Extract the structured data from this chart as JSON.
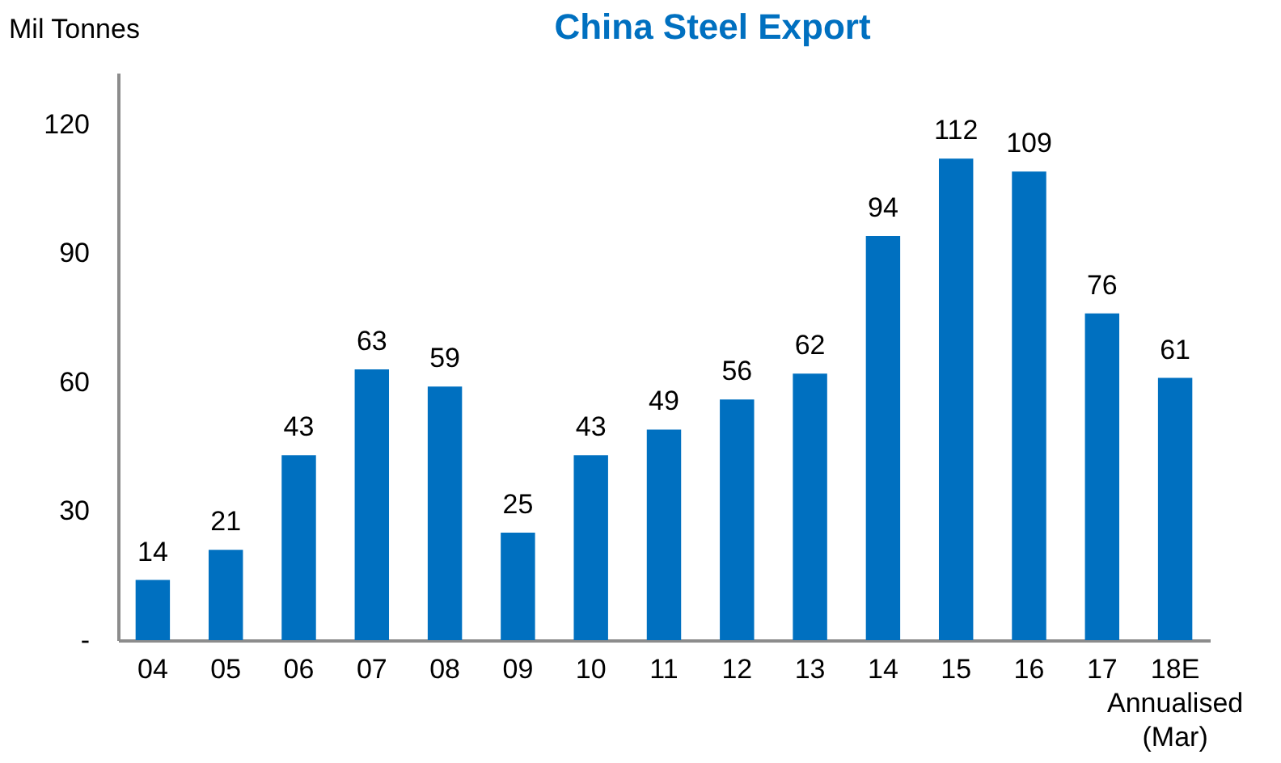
{
  "chart_data": {
    "type": "bar",
    "title": "China Steel Export",
    "ylabel": "Mil Tonnes",
    "categories": [
      "04",
      "05",
      "06",
      "07",
      "08",
      "09",
      "10",
      "11",
      "12",
      "13",
      "14",
      "15",
      "16",
      "17",
      "18E\nAnnualised\n(Mar)"
    ],
    "values": [
      14,
      21,
      43,
      63,
      59,
      25,
      43,
      49,
      56,
      62,
      94,
      112,
      109,
      76,
      61
    ],
    "color": "#0070c0",
    "ylim": [
      0,
      132
    ],
    "yticks": [
      {
        "value": 0,
        "label": "-"
      },
      30,
      60,
      90,
      120
    ],
    "grid": false,
    "data_labels": true
  }
}
